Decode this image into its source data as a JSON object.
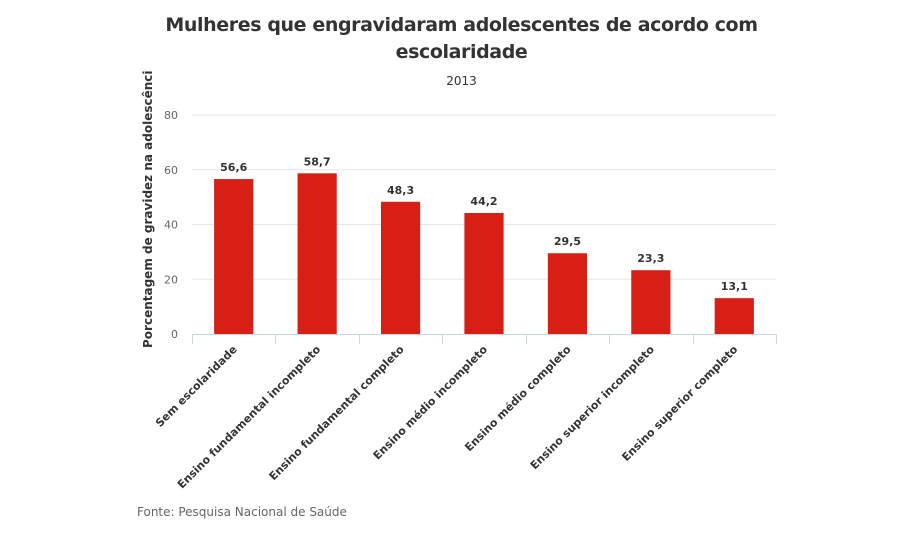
{
  "chart_data": {
    "type": "bar",
    "title": "Mulheres que engravidaram adolescentes de acordo com escolaridade",
    "title_lines": [
      "Mulheres que engravidaram adolescentes de acordo com",
      "escolaridade"
    ],
    "subtitle": "2013",
    "xlabel": "",
    "ylabel": "Porcentagem de gravidez na adolescência",
    "ylabel_visible": "Porcentagem de gravidez na adolescênci",
    "ylim": [
      0,
      80
    ],
    "yticks": [
      0,
      20,
      40,
      60,
      80
    ],
    "grid": true,
    "bar_color": "#d81f16",
    "categories": [
      "Sem escolaridade",
      "Ensino fundamental incompleto",
      "Ensino fundamental completo",
      "Ensino médio incompleto",
      "Ensino médio completo",
      "Ensino superior incompleto",
      "Ensino superior completo"
    ],
    "values": [
      56.6,
      58.7,
      48.3,
      44.2,
      29.5,
      23.3,
      13.1
    ],
    "value_labels": [
      "56,6",
      "58,7",
      "48,3",
      "44,2",
      "29,5",
      "23,3",
      "13,1"
    ],
    "source": "Fonte: Pesquisa Nacional de Saúde"
  }
}
